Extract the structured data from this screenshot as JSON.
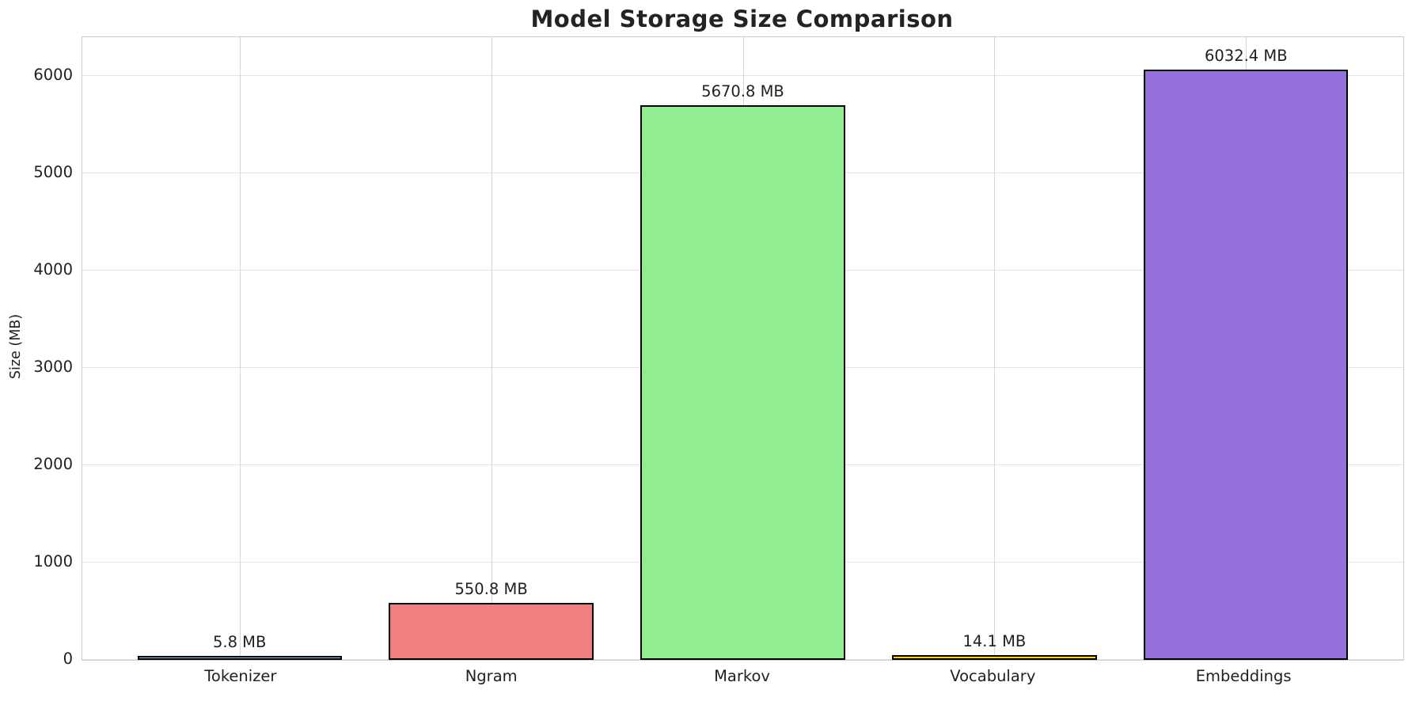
{
  "chart_data": {
    "type": "bar",
    "title": "Model Storage Size Comparison",
    "xlabel": "",
    "ylabel": "Size (MB)",
    "categories": [
      "Tokenizer",
      "Ngram",
      "Markov",
      "Vocabulary",
      "Embeddings"
    ],
    "values": [
      5.8,
      550.8,
      5670.8,
      14.1,
      6032.4
    ],
    "value_labels": [
      "5.8 MB",
      "550.8 MB",
      "5670.8 MB",
      "14.1 MB",
      "6032.4 MB"
    ],
    "bar_colors": [
      "#87CEEB",
      "#F08080",
      "#90EE90",
      "#FFD700",
      "#9370DB"
    ],
    "bar_edge_color": "#000000",
    "yticks": [
      0,
      1000,
      2000,
      3000,
      4000,
      5000,
      6000
    ],
    "ylim": [
      0,
      6400
    ],
    "grid": true,
    "legend": "none",
    "background_color": "#ffffff",
    "text_color": "#1f1f1f"
  }
}
